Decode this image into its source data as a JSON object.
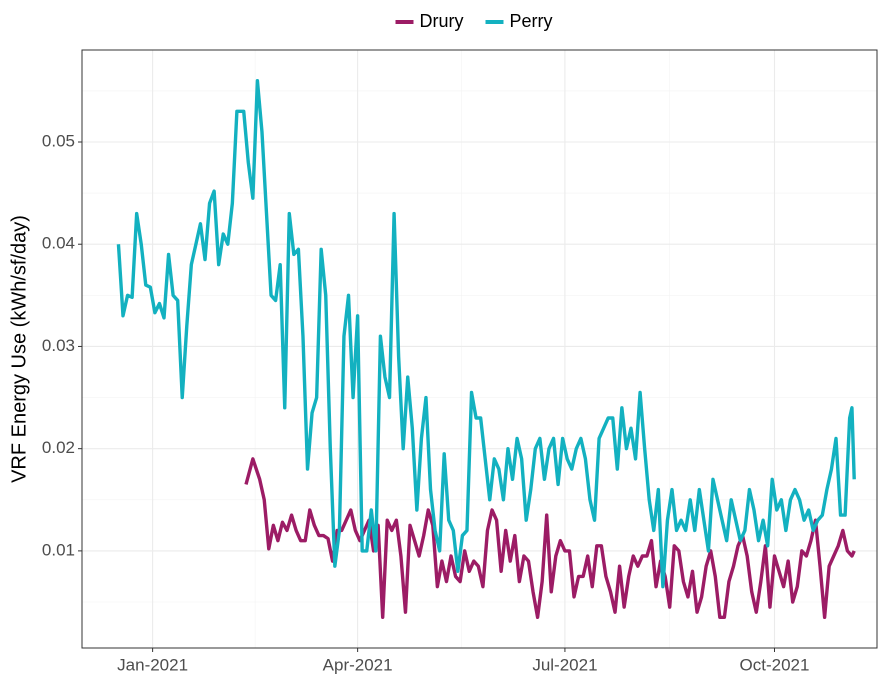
{
  "chart_data": {
    "type": "line",
    "y_label": "VRF Energy Use (kWh/sf/day)",
    "xlim": [
      -31,
      318
    ],
    "xticks": [
      {
        "value": 0,
        "label": "Jan-2021"
      },
      {
        "value": 90,
        "label": "Apr-2021"
      },
      {
        "value": 181,
        "label": "Jul-2021"
      },
      {
        "value": 273,
        "label": "Oct-2021"
      }
    ],
    "ylim": [
      0.0005,
      0.059
    ],
    "yticks": [
      0.01,
      0.02,
      0.03,
      0.04,
      0.05
    ],
    "grid": true,
    "legend": "top",
    "series": [
      {
        "name": "Drury",
        "color": "#9c1c65",
        "x": [
          41,
          44,
          47,
          49,
          51,
          53,
          55,
          57,
          59,
          61,
          63,
          65,
          67,
          69,
          71,
          73,
          75,
          77,
          79,
          81,
          83,
          85,
          87,
          89,
          91,
          93,
          95,
          97,
          99,
          101,
          103,
          105,
          107,
          109,
          111,
          113,
          115,
          117,
          119,
          121,
          123,
          125,
          127,
          129,
          131,
          133,
          135,
          137,
          139,
          141,
          143,
          145,
          147,
          149,
          151,
          153,
          155,
          157,
          159,
          161,
          163,
          165,
          167,
          169,
          171,
          173,
          175,
          177,
          179,
          181,
          183,
          185,
          187,
          189,
          191,
          193,
          195,
          197,
          199,
          201,
          203,
          205,
          207,
          209,
          211,
          213,
          215,
          217,
          219,
          221,
          223,
          225,
          227,
          229,
          231,
          233,
          235,
          237,
          239,
          241,
          243,
          245,
          247,
          249,
          251,
          253,
          255,
          257,
          259,
          261,
          263,
          265,
          267,
          269,
          271,
          273,
          275,
          277,
          279,
          281,
          283,
          285,
          287,
          289,
          291,
          293,
          295,
          297,
          299,
          301,
          303,
          305,
          307,
          308
        ],
        "values": [
          0.0165,
          0.019,
          0.017,
          0.015,
          0.0102,
          0.0125,
          0.011,
          0.0128,
          0.012,
          0.0135,
          0.012,
          0.011,
          0.011,
          0.014,
          0.0125,
          0.0115,
          0.0115,
          0.0112,
          0.009,
          0.012,
          0.012,
          0.013,
          0.014,
          0.012,
          0.011,
          0.012,
          0.013,
          0.01,
          0.0125,
          0.0035,
          0.013,
          0.012,
          0.013,
          0.0095,
          0.004,
          0.0125,
          0.011,
          0.0095,
          0.0115,
          0.014,
          0.0125,
          0.0065,
          0.009,
          0.007,
          0.0095,
          0.0075,
          0.007,
          0.01,
          0.008,
          0.009,
          0.0085,
          0.0065,
          0.012,
          0.014,
          0.013,
          0.008,
          0.012,
          0.009,
          0.0115,
          0.007,
          0.0095,
          0.009,
          0.006,
          0.0035,
          0.007,
          0.0135,
          0.006,
          0.0095,
          0.011,
          0.01,
          0.01,
          0.0055,
          0.0075,
          0.0075,
          0.0095,
          0.0065,
          0.0105,
          0.0105,
          0.0075,
          0.006,
          0.004,
          0.0085,
          0.0045,
          0.0075,
          0.0095,
          0.0085,
          0.0095,
          0.0095,
          0.011,
          0.0065,
          0.009,
          0.0075,
          0.0045,
          0.0105,
          0.01,
          0.007,
          0.0055,
          0.008,
          0.004,
          0.0055,
          0.0085,
          0.01,
          0.0075,
          0.0035,
          0.0035,
          0.007,
          0.0085,
          0.0105,
          0.0115,
          0.0095,
          0.006,
          0.004,
          0.007,
          0.0105,
          0.0045,
          0.0095,
          0.008,
          0.0065,
          0.009,
          0.005,
          0.0065,
          0.01,
          0.0095,
          0.011,
          0.013,
          0.0085,
          0.0035,
          0.0085,
          0.0095,
          0.0105,
          0.012,
          0.01,
          0.0095,
          0.01
        ]
      },
      {
        "name": "Perry",
        "color": "#13b1c0",
        "x": [
          -15,
          -13,
          -11,
          -9,
          -7,
          -5,
          -3,
          -1,
          1,
          3,
          5,
          7,
          9,
          11,
          13,
          15,
          17,
          19,
          21,
          23,
          25,
          27,
          29,
          31,
          33,
          35,
          37,
          40,
          42,
          44,
          46,
          48,
          50,
          52,
          54,
          56,
          58,
          60,
          62,
          64,
          66,
          68,
          70,
          72,
          74,
          76,
          78,
          80,
          82,
          84,
          86,
          88,
          90,
          92,
          94,
          96,
          98,
          100,
          102,
          104,
          106,
          108,
          110,
          112,
          114,
          116,
          118,
          120,
          122,
          124,
          126,
          128,
          130,
          132,
          134,
          136,
          138,
          140,
          142,
          144,
          146,
          148,
          150,
          152,
          154,
          156,
          158,
          160,
          162,
          164,
          166,
          168,
          170,
          172,
          174,
          176,
          178,
          180,
          182,
          184,
          186,
          188,
          190,
          192,
          194,
          196,
          198,
          200,
          202,
          204,
          206,
          208,
          210,
          212,
          214,
          216,
          218,
          220,
          222,
          224,
          226,
          228,
          230,
          232,
          234,
          236,
          238,
          240,
          242,
          244,
          246,
          248,
          250,
          252,
          254,
          256,
          258,
          260,
          262,
          264,
          266,
          268,
          270,
          272,
          274,
          276,
          278,
          280,
          282,
          284,
          286,
          288,
          290,
          292,
          294,
          296,
          298,
          300,
          302,
          304,
          306,
          307,
          308
        ],
        "values": [
          0.04,
          0.033,
          0.035,
          0.0348,
          0.043,
          0.04,
          0.036,
          0.0358,
          0.0333,
          0.0342,
          0.0328,
          0.039,
          0.035,
          0.0345,
          0.025,
          0.032,
          0.038,
          0.04,
          0.042,
          0.0385,
          0.044,
          0.0452,
          0.038,
          0.041,
          0.04,
          0.044,
          0.053,
          0.053,
          0.048,
          0.0445,
          0.056,
          0.051,
          0.043,
          0.035,
          0.0345,
          0.038,
          0.024,
          0.043,
          0.039,
          0.0395,
          0.031,
          0.018,
          0.0235,
          0.025,
          0.0395,
          0.035,
          0.02,
          0.0085,
          0.012,
          0.031,
          0.035,
          0.025,
          0.033,
          0.01,
          0.01,
          0.014,
          0.01,
          0.031,
          0.027,
          0.025,
          0.043,
          0.029,
          0.02,
          0.027,
          0.022,
          0.014,
          0.021,
          0.025,
          0.016,
          0.012,
          0.01,
          0.0195,
          0.013,
          0.012,
          0.008,
          0.0115,
          0.012,
          0.0255,
          0.023,
          0.023,
          0.019,
          0.015,
          0.019,
          0.018,
          0.015,
          0.02,
          0.017,
          0.021,
          0.019,
          0.013,
          0.016,
          0.02,
          0.021,
          0.017,
          0.02,
          0.021,
          0.0165,
          0.021,
          0.019,
          0.018,
          0.02,
          0.021,
          0.019,
          0.015,
          0.013,
          0.021,
          0.022,
          0.023,
          0.023,
          0.018,
          0.024,
          0.02,
          0.022,
          0.019,
          0.0255,
          0.02,
          0.015,
          0.012,
          0.016,
          0.0065,
          0.013,
          0.016,
          0.012,
          0.013,
          0.012,
          0.015,
          0.012,
          0.016,
          0.013,
          0.01,
          0.017,
          0.015,
          0.013,
          0.011,
          0.015,
          0.013,
          0.011,
          0.012,
          0.016,
          0.014,
          0.011,
          0.013,
          0.0105,
          0.017,
          0.014,
          0.015,
          0.012,
          0.015,
          0.016,
          0.015,
          0.013,
          0.014,
          0.012,
          0.013,
          0.0135,
          0.016,
          0.018,
          0.021,
          0.0135,
          0.0135,
          0.023,
          0.024,
          0.017
        ]
      }
    ]
  }
}
